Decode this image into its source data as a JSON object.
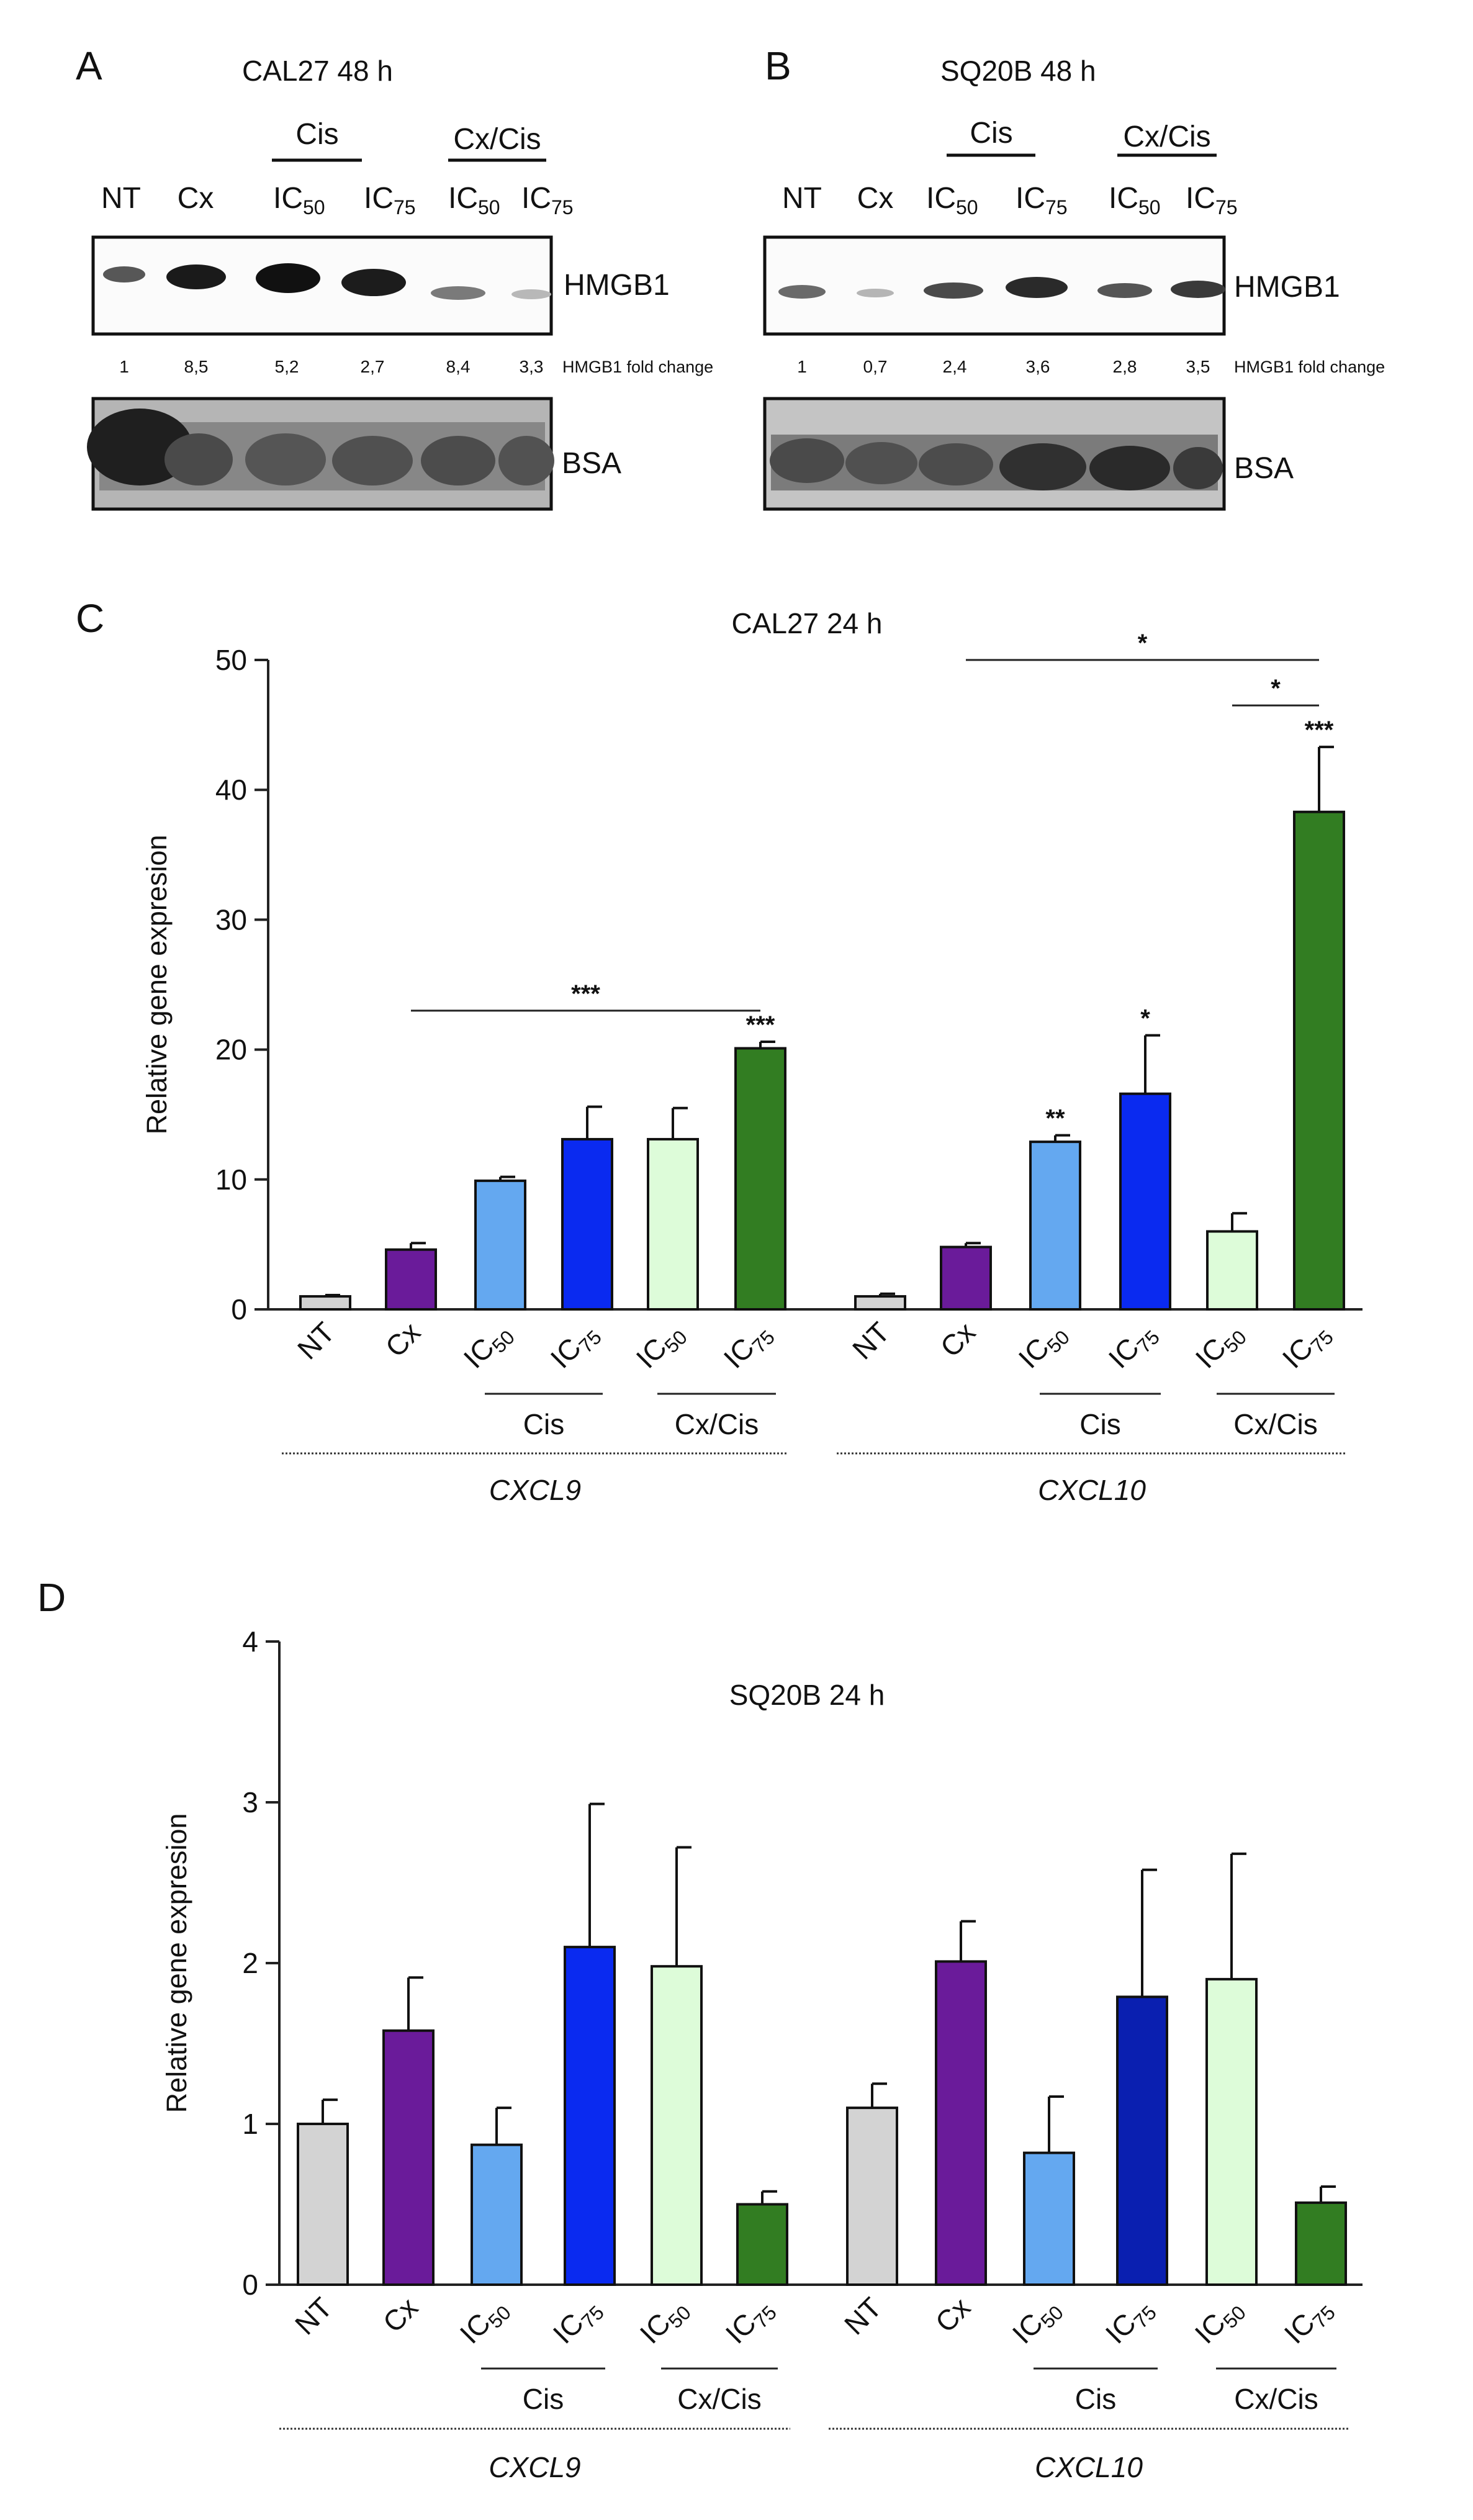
{
  "panels": {
    "A": {
      "label": "A",
      "title": "CAL27 48 h"
    },
    "B": {
      "label": "B",
      "title": "SQ20B 48 h"
    },
    "C": {
      "label": "C"
    },
    "D": {
      "label": "D"
    }
  },
  "blot": {
    "lanes": [
      "NT",
      "Cx",
      "IC",
      "IC",
      "IC",
      "IC"
    ],
    "lane_subscripts": [
      "",
      "",
      "50",
      "75",
      "50",
      "75"
    ],
    "groups": [
      "Cis",
      "Cx/Cis"
    ],
    "band_labels": {
      "hmgb1": "HMGB1",
      "bsa": "BSA"
    },
    "fold_caption": "HMGB1 fold change",
    "fold_A": [
      "1",
      "8,5",
      "5,2",
      "2,7",
      "8,4",
      "3,3"
    ],
    "fold_B": [
      "1",
      "0,7",
      "2,4",
      "3,6",
      "2,8",
      "3,5"
    ]
  },
  "chart_data": [
    {
      "type": "bar",
      "panel": "C",
      "title": "CAL27 24 h",
      "ylabel": "Relative gene expresion",
      "ylim": [
        0,
        50
      ],
      "yticks": [
        "0",
        "10",
        "20",
        "30",
        "40",
        "50"
      ],
      "categories": [
        "NT",
        "Cx",
        "IC50",
        "IC75",
        "IC50",
        "IC75",
        "NT",
        "Cx",
        "IC50",
        "IC75",
        "IC50",
        "IC75"
      ],
      "tick_labels": [
        {
          "main": "NT",
          "sub": ""
        },
        {
          "main": "Cx",
          "sub": ""
        },
        {
          "main": "IC",
          "sub": "50"
        },
        {
          "main": "IC",
          "sub": "75"
        },
        {
          "main": "IC",
          "sub": "50"
        },
        {
          "main": "IC",
          "sub": "75"
        },
        {
          "main": "NT",
          "sub": ""
        },
        {
          "main": "Cx",
          "sub": ""
        },
        {
          "main": "IC",
          "sub": "50"
        },
        {
          "main": "IC",
          "sub": "75"
        },
        {
          "main": "IC",
          "sub": "50"
        },
        {
          "main": "IC",
          "sub": "75"
        }
      ],
      "values": [
        1.0,
        4.6,
        9.9,
        13.1,
        13.1,
        20.1,
        1.0,
        4.8,
        12.9,
        16.6,
        6.0,
        38.3
      ],
      "errors": [
        0.1,
        0.5,
        0.3,
        2.5,
        2.4,
        0.5,
        0.2,
        0.3,
        0.5,
        4.5,
        1.4,
        5.0
      ],
      "colors": [
        "#d3d3d3",
        "#6a1b9a",
        "#64a8f0",
        "#0a2af0",
        "#ddfcd9",
        "#327d22",
        "#d3d3d3",
        "#6a1b9a",
        "#64a8f0",
        "#0a2af0",
        "#ddfcd9",
        "#327d22"
      ],
      "group_labels": [
        "Cis",
        "Cx/Cis",
        "Cis",
        "Cx/Cis"
      ],
      "gene_labels": [
        "CXCL9",
        "CXCL10"
      ],
      "bar_annotations": [
        {
          "bar": 5,
          "text": "***"
        },
        {
          "bar": 8,
          "text": "**"
        },
        {
          "bar": 9,
          "text": "*"
        },
        {
          "bar": 11,
          "text": "***"
        }
      ],
      "brackets": [
        {
          "from": 1,
          "to": 5,
          "y": 23,
          "text": "***"
        },
        {
          "from": 7,
          "to": 11,
          "y": 50,
          "text": "*"
        },
        {
          "from": 10,
          "to": 11,
          "y": 46.5,
          "text": "*"
        }
      ]
    },
    {
      "type": "bar",
      "panel": "D",
      "title": "SQ20B 24 h",
      "ylabel": "Relative gene expresion",
      "ylim": [
        0,
        4
      ],
      "yticks": [
        "0",
        "1",
        "2",
        "3",
        "4"
      ],
      "categories": [
        "NT",
        "Cx",
        "IC50",
        "IC75",
        "IC50",
        "IC75",
        "NT",
        "Cx",
        "IC50",
        "IC75",
        "IC50",
        "IC75"
      ],
      "tick_labels": [
        {
          "main": "NT",
          "sub": ""
        },
        {
          "main": "Cx",
          "sub": ""
        },
        {
          "main": "IC",
          "sub": "50"
        },
        {
          "main": "IC",
          "sub": "75"
        },
        {
          "main": "IC",
          "sub": "50"
        },
        {
          "main": "IC",
          "sub": "75"
        },
        {
          "main": "NT",
          "sub": ""
        },
        {
          "main": "Cx",
          "sub": ""
        },
        {
          "main": "IC",
          "sub": "50"
        },
        {
          "main": "IC",
          "sub": "75"
        },
        {
          "main": "IC",
          "sub": "50"
        },
        {
          "main": "IC",
          "sub": "75"
        }
      ],
      "values": [
        1.0,
        1.58,
        0.87,
        2.1,
        1.98,
        0.5,
        1.1,
        2.01,
        0.82,
        1.79,
        1.9,
        0.51
      ],
      "errors": [
        0.15,
        0.33,
        0.23,
        0.89,
        0.74,
        0.08,
        0.15,
        0.25,
        0.35,
        0.79,
        0.78,
        0.1
      ],
      "colors": [
        "#d3d3d3",
        "#6a1b9a",
        "#64a8f0",
        "#0a2af0",
        "#ddfcd9",
        "#327d22",
        "#d3d3d3",
        "#6a1b9a",
        "#64a8f0",
        "#0a1fb0",
        "#ddfcd9",
        "#327d22"
      ],
      "group_labels": [
        "Cis",
        "Cx/Cis",
        "Cis",
        "Cx/Cis"
      ],
      "gene_labels": [
        "CXCL9",
        "CXCL10"
      ],
      "bar_annotations": [],
      "brackets": []
    }
  ]
}
